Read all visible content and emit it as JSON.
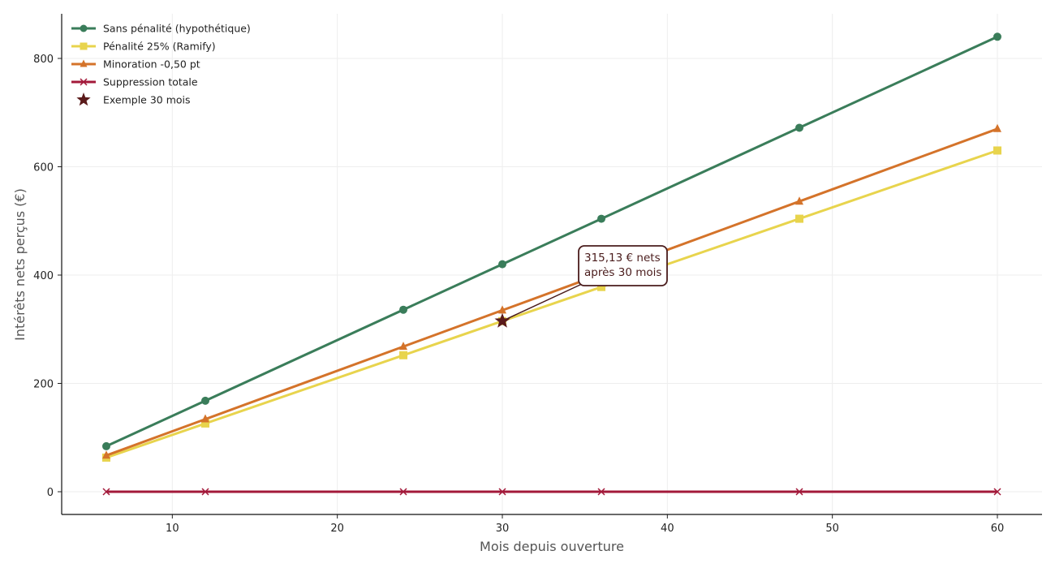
{
  "chart_data": {
    "type": "line",
    "title": "",
    "xlabel": "Mois depuis ouverture",
    "ylabel": "Intérêts nets perçus (€)",
    "x": [
      6,
      12,
      24,
      30,
      36,
      48,
      60
    ],
    "xlim": [
      3.2,
      63
    ],
    "ylim": [
      -42,
      885
    ],
    "xticks": [
      10,
      20,
      30,
      40,
      50,
      60
    ],
    "yticks": [
      0,
      200,
      400,
      600,
      800
    ],
    "grid": true,
    "legend_position": "upper left",
    "series": [
      {
        "name": "Sans pénalité (hypothétique)",
        "color": "#3a7d5a",
        "marker": "circle",
        "values": [
          84,
          168,
          336,
          420,
          504,
          672,
          840
        ]
      },
      {
        "name": "Pénalité 25% (Ramify)",
        "color": "#e8d44d",
        "marker": "square",
        "values": [
          63,
          126,
          252,
          315,
          378,
          504,
          630
        ]
      },
      {
        "name": "Minoration -0,50 pt",
        "color": "#d4732a",
        "marker": "triangle",
        "values": [
          67,
          134,
          268,
          335,
          402,
          536,
          670
        ]
      },
      {
        "name": "Suppression totale",
        "color": "#a3193a",
        "marker": "x",
        "values": [
          0,
          0,
          0,
          0,
          0,
          0,
          0
        ]
      }
    ],
    "highlight": {
      "name": "Exemple 30 mois",
      "x": 30,
      "y": 315.13,
      "color": "#5a1a1a",
      "marker": "star"
    },
    "annotation": {
      "line1": "315,13 € nets",
      "line2": "après 30 mois",
      "x": 35,
      "y": 420,
      "color": "#4a1c1c"
    }
  }
}
